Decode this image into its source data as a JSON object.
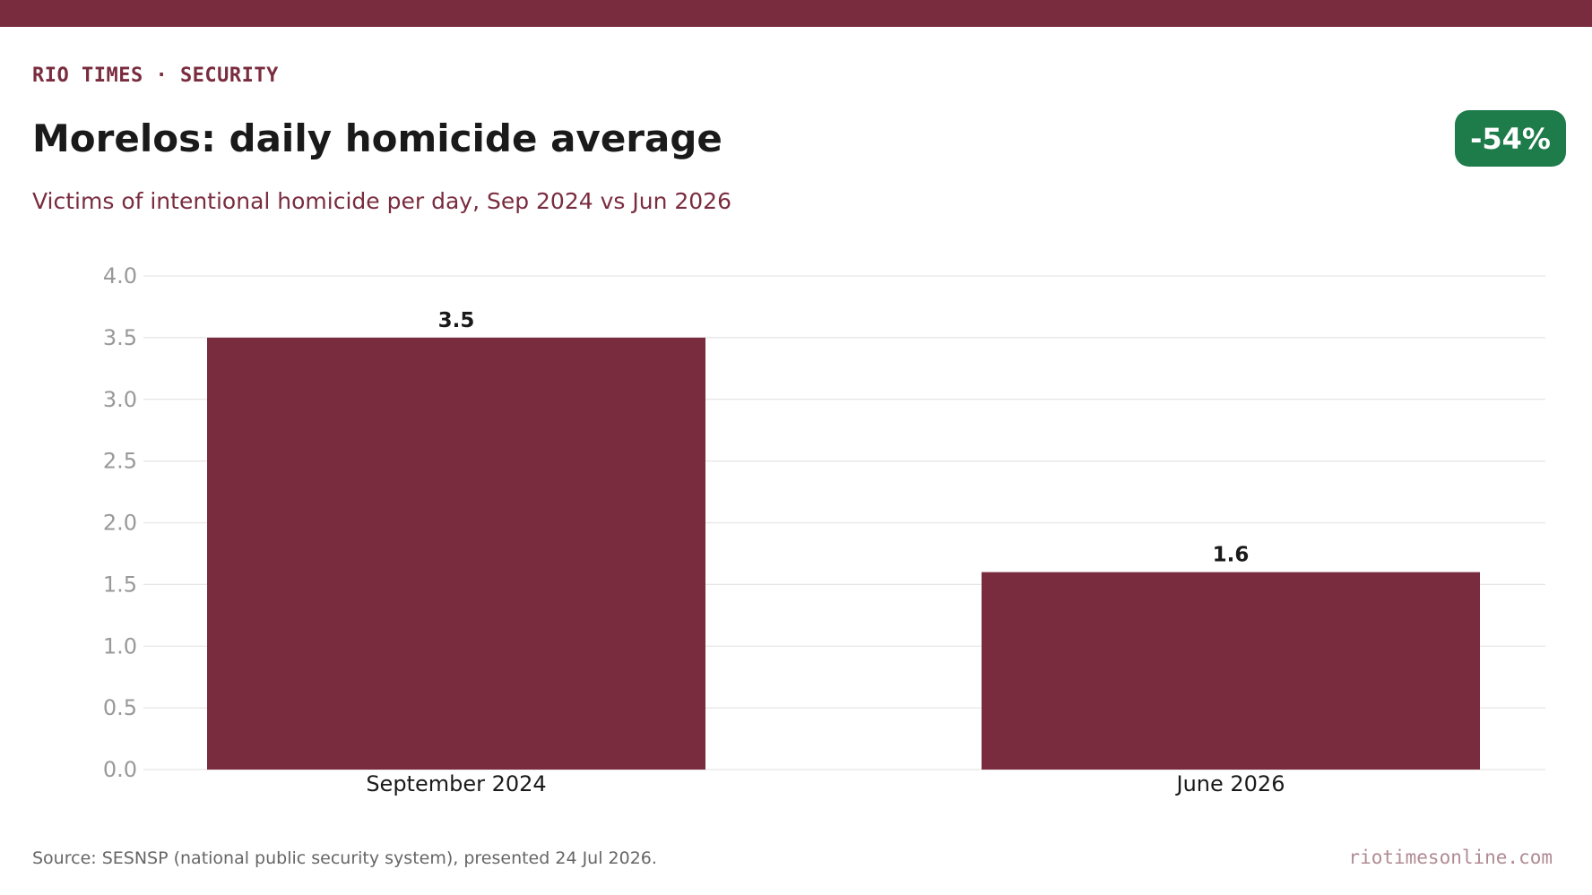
{
  "header": {
    "kicker": "RIO TIMES · SECURITY",
    "title": "Morelos: daily homicide average",
    "subtitle": "Victims of intentional homicide per day, Sep 2024 vs Jun 2026",
    "badge": "-54%"
  },
  "colors": {
    "brand": "#7a2c3f",
    "bar": "#7a2c3f",
    "badge": "#1e7b4a",
    "grid": "#e6e6e6"
  },
  "chart_data": {
    "type": "bar",
    "categories": [
      "September 2024",
      "June 2026"
    ],
    "values": [
      3.5,
      1.6
    ],
    "value_labels": [
      "3.5",
      "1.6"
    ],
    "title": "Morelos: daily homicide average",
    "subtitle": "Victims of intentional homicide per day, Sep 2024 vs Jun 2026",
    "xlabel": "",
    "ylabel": "",
    "ylim": [
      0,
      4.0
    ],
    "yticks": [
      "0.0",
      "0.5",
      "1.0",
      "1.5",
      "2.0",
      "2.5",
      "3.0",
      "3.5",
      "4.0"
    ],
    "grid": true,
    "legend": "none"
  },
  "footer": {
    "source": "Source: SESNSP (national public security system), presented 24 Jul 2026.",
    "site": "riotimesonline.com"
  }
}
